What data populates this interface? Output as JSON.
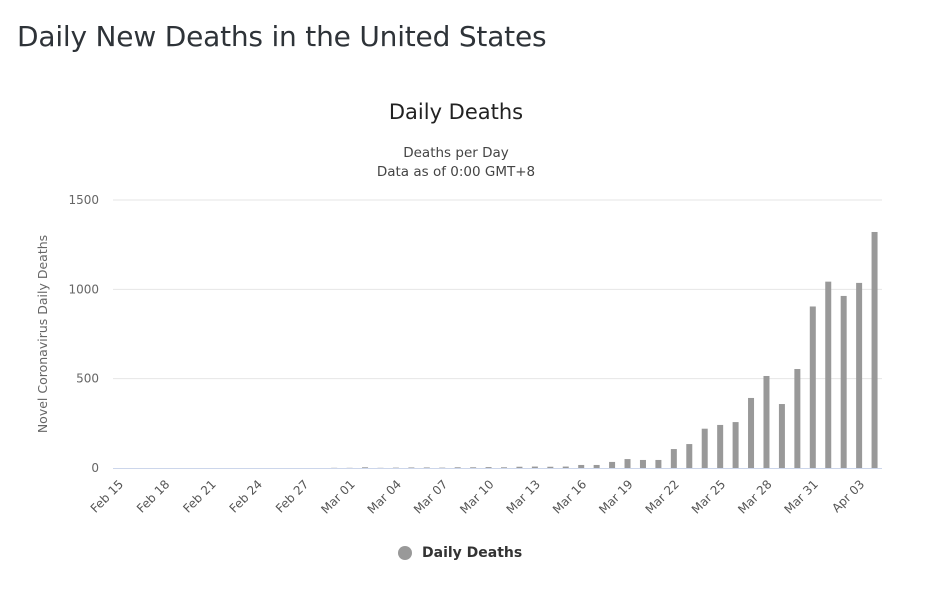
{
  "header": {
    "title": "Daily New Deaths in the United States"
  },
  "colors": {
    "bar": "#999999",
    "grid": "#e6e6e6",
    "axis": "#ccd6eb"
  },
  "chart_data": {
    "type": "bar",
    "title": "Daily Deaths",
    "subtitle_lines": [
      "Deaths per Day",
      "Data as of 0:00 GMT+8"
    ],
    "xlabel": "",
    "ylabel": "Novel Coronavirus Daily Deaths",
    "ylim": [
      0,
      1500
    ],
    "yticks": [
      0,
      500,
      1000,
      1500
    ],
    "ytick_labels": [
      "0",
      "500",
      "1000",
      "1500"
    ],
    "grid": true,
    "legend": {
      "position": "bottom-center",
      "entries": [
        "Daily Deaths"
      ]
    },
    "xtick_labels": [
      "Feb 15",
      "Feb 18",
      "Feb 21",
      "Feb 24",
      "Feb 27",
      "Mar 01",
      "Mar 04",
      "Mar 07",
      "Mar 10",
      "Mar 13",
      "Mar 16",
      "Mar 19",
      "Mar 22",
      "Mar 25",
      "Mar 28",
      "Mar 31",
      "Apr 03"
    ],
    "categories": [
      "Feb 15",
      "Feb 16",
      "Feb 17",
      "Feb 18",
      "Feb 19",
      "Feb 20",
      "Feb 21",
      "Feb 22",
      "Feb 23",
      "Feb 24",
      "Feb 25",
      "Feb 26",
      "Feb 27",
      "Feb 28",
      "Feb 29",
      "Mar 01",
      "Mar 02",
      "Mar 03",
      "Mar 04",
      "Mar 05",
      "Mar 06",
      "Mar 07",
      "Mar 08",
      "Mar 09",
      "Mar 10",
      "Mar 11",
      "Mar 12",
      "Mar 13",
      "Mar 14",
      "Mar 15",
      "Mar 16",
      "Mar 17",
      "Mar 18",
      "Mar 19",
      "Mar 20",
      "Mar 21",
      "Mar 22",
      "Mar 23",
      "Mar 24",
      "Mar 25",
      "Mar 26",
      "Mar 27",
      "Mar 28",
      "Mar 29",
      "Mar 30",
      "Mar 31",
      "Apr 01",
      "Apr 02",
      "Apr 03",
      "Apr 04"
    ],
    "series": [
      {
        "name": "Daily Deaths",
        "values": [
          0,
          0,
          0,
          0,
          0,
          0,
          0,
          0,
          0,
          0,
          0,
          0,
          0,
          0,
          1,
          1,
          4,
          1,
          2,
          3,
          3,
          2,
          4,
          4,
          5,
          4,
          7,
          8,
          7,
          8,
          17,
          17,
          34,
          50,
          45,
          45,
          106,
          134,
          220,
          241,
          257,
          392,
          515,
          358,
          554,
          904,
          1043,
          963,
          1036,
          1321
        ]
      }
    ]
  }
}
